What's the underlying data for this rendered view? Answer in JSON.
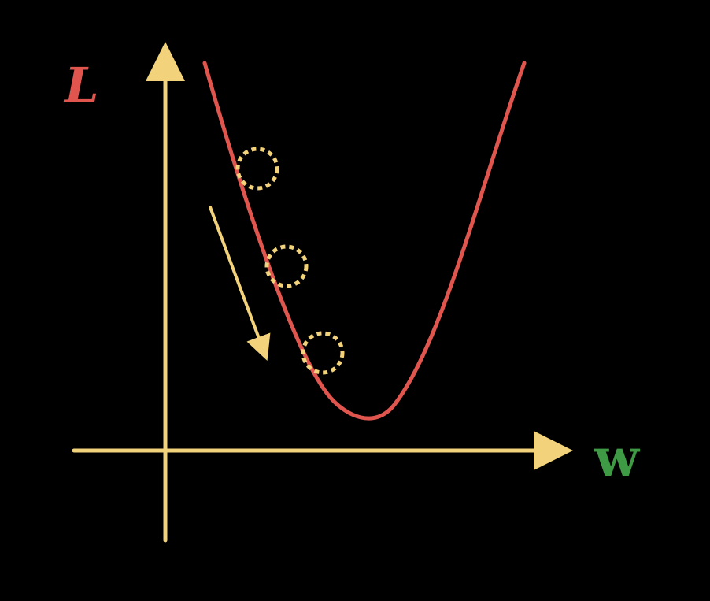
{
  "diagram": {
    "y_axis_label": "L",
    "x_axis_label": "w",
    "colors": {
      "background": "#000000",
      "axes": "#f2d27a",
      "curve": "#e0564f",
      "y_label": "#e0564f",
      "x_label": "#3f9a45",
      "ball_outline": "#f2d27a",
      "descent_arrow": "#f2d27a"
    },
    "elements": {
      "curve": "loss-curve",
      "balls": [
        "ball-1",
        "ball-2",
        "ball-3"
      ],
      "arrow": "descent-arrow"
    }
  }
}
